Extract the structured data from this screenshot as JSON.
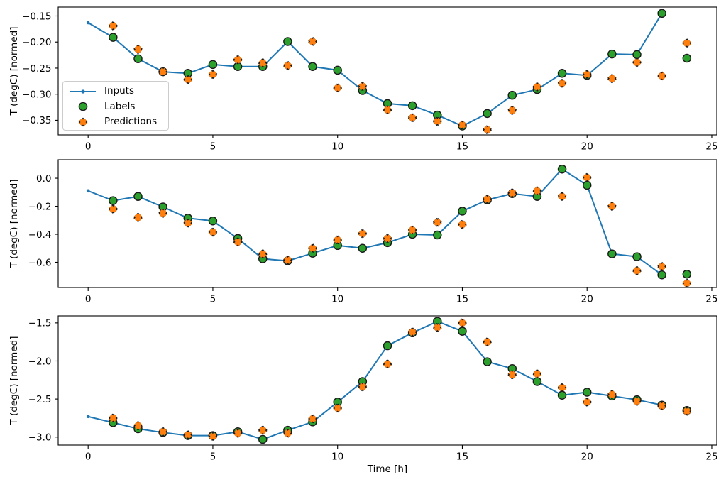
{
  "figure": {
    "background": "#ffffff",
    "axes_edge_color": "#000000",
    "tick_color": "#000000"
  },
  "legend": {
    "position": "upper left of first subplot",
    "items": [
      {
        "label": "Inputs",
        "marker": "line-with-dot",
        "color": "#1f77b4"
      },
      {
        "label": "Labels",
        "marker": "circle",
        "color": "#2ca02c",
        "edge_color": "#1a1a1a"
      },
      {
        "label": "Predictions",
        "marker": "x",
        "color": "#ff7f0e",
        "edge_color": "#1a1a1a"
      }
    ]
  },
  "chart_data": [
    {
      "type": "line",
      "title": "",
      "ylabel": "T (degC) [normed]",
      "xlabel": "",
      "grid": false,
      "xlim": [
        -1.2,
        25.2
      ],
      "ylim": [
        -0.378,
        -0.133
      ],
      "xticks": [
        0,
        5,
        10,
        15,
        20,
        25
      ],
      "xtick_labels": [
        "0",
        "5",
        "10",
        "15",
        "20",
        "25"
      ],
      "ytick_values": [
        -0.15,
        -0.2,
        -0.25,
        -0.3,
        -0.35
      ],
      "ytick_labels": [
        "−0.15",
        "−0.20",
        "−0.25",
        "−0.30",
        "−0.35"
      ],
      "series": [
        {
          "name": "Inputs",
          "type": "line",
          "color": "#1f77b4",
          "x": [
            0,
            1,
            2,
            3,
            4,
            5,
            6,
            7,
            8,
            9,
            10,
            11,
            12,
            13,
            14,
            15,
            16,
            17,
            18,
            19,
            20,
            21,
            22,
            23
          ],
          "y": [
            -0.163,
            -0.191,
            -0.232,
            -0.257,
            -0.26,
            -0.243,
            -0.247,
            -0.247,
            -0.199,
            -0.247,
            -0.254,
            -0.293,
            -0.318,
            -0.322,
            -0.34,
            -0.361,
            -0.337,
            -0.302,
            -0.291,
            -0.26,
            -0.264,
            -0.223,
            -0.224,
            -0.145
          ]
        },
        {
          "name": "Labels",
          "type": "scatter-circle",
          "color": "#2ca02c",
          "edge_color": "#1a1a1a",
          "x": [
            1,
            2,
            3,
            4,
            5,
            6,
            7,
            8,
            9,
            10,
            11,
            12,
            13,
            14,
            15,
            16,
            17,
            18,
            19,
            20,
            21,
            22,
            23,
            24
          ],
          "y": [
            -0.191,
            -0.232,
            -0.257,
            -0.26,
            -0.243,
            -0.247,
            -0.247,
            -0.199,
            -0.247,
            -0.254,
            -0.293,
            -0.318,
            -0.322,
            -0.34,
            -0.361,
            -0.337,
            -0.302,
            -0.291,
            -0.26,
            -0.264,
            -0.223,
            -0.224,
            -0.145,
            -0.231
          ]
        },
        {
          "name": "Predictions",
          "type": "scatter-x",
          "color": "#ff7f0e",
          "edge_color": "#1a1a1a",
          "x": [
            1,
            2,
            3,
            4,
            5,
            6,
            7,
            8,
            9,
            10,
            11,
            12,
            13,
            14,
            15,
            16,
            17,
            18,
            19,
            20,
            21,
            22,
            23,
            24
          ],
          "y": [
            -0.169,
            -0.214,
            -0.257,
            -0.272,
            -0.262,
            -0.234,
            -0.24,
            -0.245,
            -0.199,
            -0.288,
            -0.285,
            -0.33,
            -0.345,
            -0.352,
            -0.359,
            -0.368,
            -0.331,
            -0.286,
            -0.279,
            -0.262,
            -0.27,
            -0.239,
            -0.265,
            -0.202
          ]
        }
      ]
    },
    {
      "type": "line",
      "title": "",
      "ylabel": "T (degC) [normed]",
      "xlabel": "",
      "grid": false,
      "xlim": [
        -1.2,
        25.2
      ],
      "ylim": [
        -0.78,
        0.132
      ],
      "xticks": [
        0,
        5,
        10,
        15,
        20,
        25
      ],
      "xtick_labels": [
        "0",
        "5",
        "10",
        "15",
        "20",
        "25"
      ],
      "ytick_values": [
        0.0,
        -0.2,
        -0.4,
        -0.6
      ],
      "ytick_labels": [
        "0.0",
        "−0.2",
        "−0.4",
        "−0.6"
      ],
      "series": [
        {
          "name": "Inputs",
          "type": "line",
          "color": "#1f77b4",
          "x": [
            0,
            1,
            2,
            3,
            4,
            5,
            6,
            7,
            8,
            9,
            10,
            11,
            12,
            13,
            14,
            15,
            16,
            17,
            18,
            19,
            20,
            21,
            22,
            23
          ],
          "y": [
            -0.09,
            -0.16,
            -0.13,
            -0.205,
            -0.285,
            -0.305,
            -0.43,
            -0.575,
            -0.59,
            -0.535,
            -0.48,
            -0.5,
            -0.46,
            -0.4,
            -0.405,
            -0.235,
            -0.155,
            -0.11,
            -0.13,
            0.065,
            -0.05,
            -0.54,
            -0.56,
            -0.69
          ]
        },
        {
          "name": "Labels",
          "type": "scatter-circle",
          "color": "#2ca02c",
          "edge_color": "#1a1a1a",
          "x": [
            1,
            2,
            3,
            4,
            5,
            6,
            7,
            8,
            9,
            10,
            11,
            12,
            13,
            14,
            15,
            16,
            17,
            18,
            19,
            20,
            21,
            22,
            23,
            24
          ],
          "y": [
            -0.16,
            -0.13,
            -0.205,
            -0.285,
            -0.305,
            -0.43,
            -0.575,
            -0.59,
            -0.535,
            -0.48,
            -0.5,
            -0.46,
            -0.4,
            -0.405,
            -0.235,
            -0.155,
            -0.11,
            -0.13,
            0.065,
            -0.05,
            -0.54,
            -0.56,
            -0.69,
            -0.685
          ]
        },
        {
          "name": "Predictions",
          "type": "scatter-x",
          "color": "#ff7f0e",
          "edge_color": "#1a1a1a",
          "x": [
            1,
            2,
            3,
            4,
            5,
            6,
            7,
            8,
            9,
            10,
            11,
            12,
            13,
            14,
            15,
            16,
            17,
            18,
            19,
            20,
            21,
            22,
            23,
            24
          ],
          "y": [
            -0.22,
            -0.28,
            -0.25,
            -0.32,
            -0.385,
            -0.455,
            -0.54,
            -0.585,
            -0.5,
            -0.44,
            -0.395,
            -0.43,
            -0.37,
            -0.315,
            -0.33,
            -0.15,
            -0.105,
            -0.09,
            -0.13,
            0.005,
            -0.2,
            -0.66,
            -0.63,
            -0.75
          ]
        }
      ]
    },
    {
      "type": "line",
      "title": "",
      "ylabel": "T (degC) [normed]",
      "xlabel": "Time [h]",
      "grid": false,
      "xlim": [
        -1.2,
        25.2
      ],
      "ylim": [
        -3.105,
        -1.408
      ],
      "xticks": [
        0,
        5,
        10,
        15,
        20,
        25
      ],
      "xtick_labels": [
        "0",
        "5",
        "10",
        "15",
        "20",
        "25"
      ],
      "ytick_values": [
        -1.5,
        -2.0,
        -2.5,
        -3.0
      ],
      "ytick_labels": [
        "−1.5",
        "−2.0",
        "−2.5",
        "−3.0"
      ],
      "series": [
        {
          "name": "Inputs",
          "type": "line",
          "color": "#1f77b4",
          "x": [
            0,
            1,
            2,
            3,
            4,
            5,
            6,
            7,
            8,
            9,
            10,
            11,
            12,
            13,
            14,
            15,
            16,
            17,
            18,
            19,
            20,
            21,
            22,
            23
          ],
          "y": [
            -2.73,
            -2.81,
            -2.89,
            -2.94,
            -2.98,
            -2.98,
            -2.93,
            -3.03,
            -2.91,
            -2.8,
            -2.54,
            -2.27,
            -1.8,
            -1.63,
            -1.48,
            -1.61,
            -2.01,
            -2.1,
            -2.27,
            -2.45,
            -2.41,
            -2.46,
            -2.51,
            -2.58
          ]
        },
        {
          "name": "Labels",
          "type": "scatter-circle",
          "color": "#2ca02c",
          "edge_color": "#1a1a1a",
          "x": [
            1,
            2,
            3,
            4,
            5,
            6,
            7,
            8,
            9,
            10,
            11,
            12,
            13,
            14,
            15,
            16,
            17,
            18,
            19,
            20,
            21,
            22,
            23,
            24
          ],
          "y": [
            -2.81,
            -2.89,
            -2.94,
            -2.98,
            -2.98,
            -2.93,
            -3.03,
            -2.91,
            -2.8,
            -2.54,
            -2.27,
            -1.8,
            -1.63,
            -1.48,
            -1.61,
            -2.01,
            -2.1,
            -2.27,
            -2.45,
            -2.41,
            -2.46,
            -2.51,
            -2.58,
            -2.65
          ]
        },
        {
          "name": "Predictions",
          "type": "scatter-x",
          "color": "#ff7f0e",
          "edge_color": "#1a1a1a",
          "x": [
            1,
            2,
            3,
            4,
            5,
            6,
            7,
            8,
            9,
            10,
            11,
            12,
            13,
            14,
            15,
            16,
            17,
            18,
            19,
            20,
            21,
            22,
            23,
            24
          ],
          "y": [
            -2.75,
            -2.85,
            -2.93,
            -2.97,
            -2.99,
            -2.95,
            -2.91,
            -2.95,
            -2.76,
            -2.62,
            -2.34,
            -2.04,
            -1.62,
            -1.56,
            -1.5,
            -1.75,
            -2.18,
            -2.17,
            -2.35,
            -2.54,
            -2.44,
            -2.53,
            -2.59,
            -2.66
          ]
        }
      ]
    }
  ]
}
